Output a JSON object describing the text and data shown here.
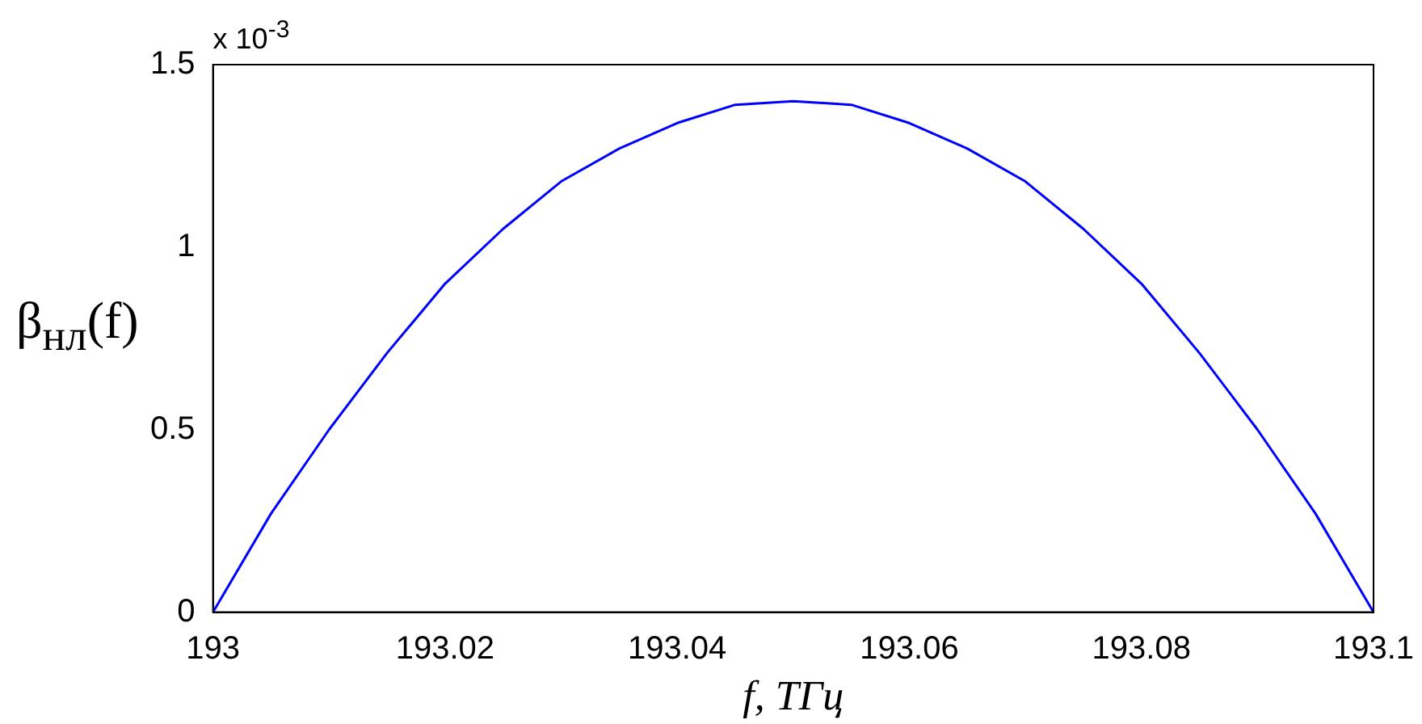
{
  "chart_data": {
    "type": "line",
    "xlabel": "f, ТГц",
    "ylabel": "β$_{нл}$(f)",
    "annotations": [
      "x 10$^{-3}$"
    ],
    "x": [
      193,
      193.005,
      193.01,
      193.015,
      193.02,
      193.025,
      193.03,
      193.035,
      193.04,
      193.045,
      193.05,
      193.055,
      193.06,
      193.065,
      193.07,
      193.075,
      193.08,
      193.085,
      193.09,
      193.095,
      193.1
    ],
    "series": [
      {
        "color": "#0000ff",
        "values": [
          0,
          0.27,
          0.5,
          0.71,
          0.9,
          1.05,
          1.18,
          1.27,
          1.34,
          1.39,
          1.4,
          1.39,
          1.34,
          1.27,
          1.18,
          1.05,
          0.9,
          0.71,
          0.5,
          0.27,
          0
        ]
      }
    ],
    "xlim": [
      193,
      193.1
    ],
    "xticks": [
      193,
      193.02,
      193.04,
      193.06,
      193.08,
      193.1
    ],
    "ylim": [
      0,
      1.5
    ],
    "yticks": [
      0,
      0.5,
      1,
      1.5
    ],
    "grid": false,
    "legend": false,
    "marker": "none",
    "line_style": "solid"
  }
}
